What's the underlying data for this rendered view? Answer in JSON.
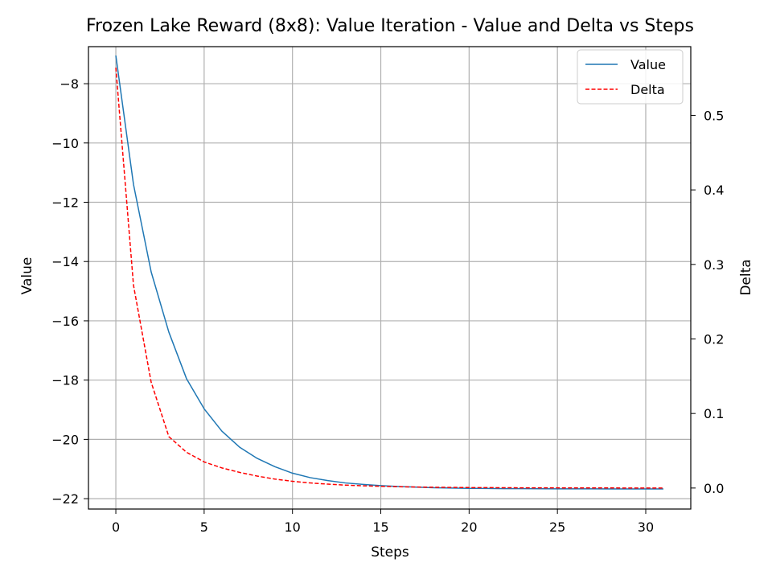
{
  "chart_data": {
    "type": "line",
    "title": "Frozen Lake Reward (8x8): Value Iteration - Value and Delta vs Steps",
    "xlabel": "Steps",
    "ylabel": "Value",
    "y2label": "Delta",
    "xlim": [
      -1.55,
      32.55
    ],
    "ylim": [
      -22.35,
      -6.75
    ],
    "y2lim": [
      -0.0282,
      0.5922
    ],
    "x_ticks": [
      0,
      5,
      10,
      15,
      20,
      25,
      30
    ],
    "y_ticks": [
      -8,
      -10,
      -12,
      -14,
      -16,
      -18,
      -20,
      -22
    ],
    "y2_ticks": [
      0.0,
      0.1,
      0.2,
      0.3,
      0.4,
      0.5
    ],
    "x_tick_labels": [
      "0",
      "5",
      "10",
      "15",
      "20",
      "25",
      "30"
    ],
    "y_tick_labels": [
      "−8",
      "−10",
      "−12",
      "−14",
      "−16",
      "−18",
      "−20",
      "−22"
    ],
    "y2_tick_labels": [
      "0.0",
      "0.1",
      "0.2",
      "0.3",
      "0.4",
      "0.5"
    ],
    "grid": true,
    "legend_position": "top-right",
    "x": [
      0,
      1,
      2,
      3,
      4,
      5,
      6,
      7,
      8,
      9,
      10,
      11,
      12,
      13,
      14,
      15,
      16,
      17,
      18,
      19,
      20,
      21,
      22,
      23,
      24,
      25,
      26,
      27,
      28,
      29,
      30,
      31
    ],
    "series": [
      {
        "name": "Value",
        "axis": "left",
        "color": "#1f77b4",
        "style": "solid",
        "values": [
          -7.05,
          -11.4,
          -14.35,
          -16.38,
          -17.95,
          -18.97,
          -19.72,
          -20.26,
          -20.64,
          -20.92,
          -21.14,
          -21.29,
          -21.39,
          -21.47,
          -21.52,
          -21.56,
          -21.59,
          -21.61,
          -21.63,
          -21.64,
          -21.65,
          -21.655,
          -21.66,
          -21.663,
          -21.665,
          -21.667,
          -21.668,
          -21.669,
          -21.67,
          -21.67,
          -21.67,
          -21.67
        ]
      },
      {
        "name": "Delta",
        "axis": "right",
        "color": "#ff0000",
        "style": "dashed",
        "values": [
          0.564,
          0.272,
          0.142,
          0.069,
          0.048,
          0.035,
          0.027,
          0.021,
          0.016,
          0.012,
          0.009,
          0.0068,
          0.0052,
          0.0039,
          0.003,
          0.0023,
          0.0017,
          0.0013,
          0.001,
          0.0008,
          0.0006,
          0.0005,
          0.0004,
          0.0003,
          0.0002,
          0.0002,
          0.0001,
          0.0001,
          0.0001,
          0.0,
          0.0,
          0.0
        ]
      }
    ]
  }
}
